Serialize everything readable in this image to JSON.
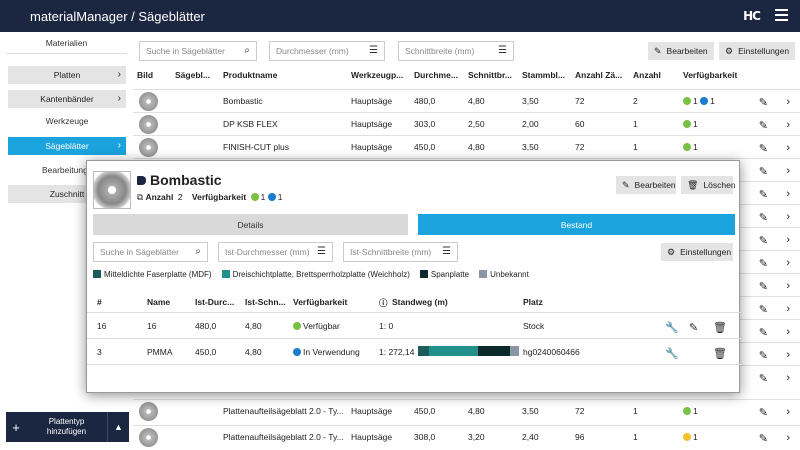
{
  "app": {
    "title": "materialManager / Sägeblätter",
    "logo": "HC"
  },
  "sidebar": {
    "head": "Materialien",
    "items": [
      {
        "label": "Platten"
      },
      {
        "label": "Kantenbänder"
      },
      {
        "label": "Werkzeuge"
      },
      {
        "label": "Sägeblätter"
      },
      {
        "label": "Bearbeitungs"
      },
      {
        "label": "Zuschnitt"
      }
    ],
    "add_label_1": "Plattentyp",
    "add_label_2": "hinzufügen"
  },
  "filters": {
    "search": "Suche in Sägeblätter",
    "diameter": "Durchmesser (mm)",
    "width": "Schnittbreite (mm)"
  },
  "toolbar": {
    "edit": "Bearbeiten",
    "settings": "Einstellungen"
  },
  "table": {
    "headers": [
      "Bild",
      "Sägebl...",
      "Produktname",
      "Werkzeugp...",
      "Durchme...",
      "Schnittbr...",
      "Stammbl...",
      "Anzahl Zä...",
      "Anzahl",
      "Verfügbarkeit"
    ],
    "rows": [
      {
        "name": "Bombastic",
        "type": "Hauptsäge",
        "d": "480,0",
        "sb": "4,80",
        "st": "3,50",
        "z": "72",
        "n": "2",
        "avail": [
          {
            "c": "g",
            "v": "1"
          },
          {
            "c": "b",
            "v": "1"
          }
        ]
      },
      {
        "name": "DP KSB FLEX",
        "type": "Hauptsäge",
        "d": "303,0",
        "sb": "2,50",
        "st": "2,00",
        "z": "60",
        "n": "1",
        "avail": [
          {
            "c": "g",
            "v": "1"
          }
        ]
      },
      {
        "name": "FINISH-CUT plus",
        "type": "Hauptsäge",
        "d": "450,0",
        "sb": "4,80",
        "st": "3,50",
        "z": "72",
        "n": "1",
        "avail": [
          {
            "c": "g",
            "v": "1"
          }
        ]
      },
      {
        "name": "Plattenaufteilsägeblatt 2.0 - Ty...",
        "type": "Hauptsäge",
        "d": "450,0",
        "sb": "4,80",
        "st": "3,50",
        "z": "72",
        "n": "1",
        "avail": [
          {
            "c": "g",
            "v": "1"
          }
        ]
      },
      {
        "name": "Plattenaufteilsägeblatt 2.0 - Ty...",
        "type": "Hauptsäge",
        "d": "308,0",
        "sb": "3,20",
        "st": "2,40",
        "z": "96",
        "n": "1",
        "avail": [
          {
            "c": "y",
            "v": "1"
          }
        ]
      }
    ]
  },
  "modal": {
    "title": "Bombastic",
    "count_label": "Anzahl",
    "count": "2",
    "avail_label": "Verfügbarkeit",
    "avail_green": "1",
    "avail_blue": "1",
    "edit": "Bearbeiten",
    "delete": "Löschen",
    "tab_details": "Details",
    "tab_stock": "Bestand",
    "search": "Suche in Sägeblätter",
    "diameter": "Ist-Durchmesser (mm)",
    "width": "Ist-Schnittbreite (mm)",
    "settings": "Einstellungen",
    "legend": [
      {
        "label": "Mitteldichte Faserplatte (MDF)",
        "color": "#1d5c5a"
      },
      {
        "label": "Dreischichtplatte, Brettsperrholzplatte (Weichholz)",
        "color": "#22918c"
      },
      {
        "label": "Spanplatte",
        "color": "#0d2a2a"
      },
      {
        "label": "Unbekannt",
        "color": "#8a96a8"
      }
    ],
    "headers": [
      "#",
      "Name",
      "Ist-Durc...",
      "Ist-Schn...",
      "Verfügbarkeit",
      "Standweg (m)",
      "Platz"
    ],
    "rows": [
      {
        "id": "16",
        "name": "16",
        "d": "480,0",
        "w": "4,80",
        "status": "Verfügbar",
        "sc": "g",
        "way": "1: 0",
        "place": "Stock"
      },
      {
        "id": "3",
        "name": "PMMA",
        "d": "450,0",
        "w": "4,80",
        "status": "In Verwendung",
        "sc": "b",
        "way": "1: 272,14",
        "place": "hg0240060466"
      }
    ]
  }
}
